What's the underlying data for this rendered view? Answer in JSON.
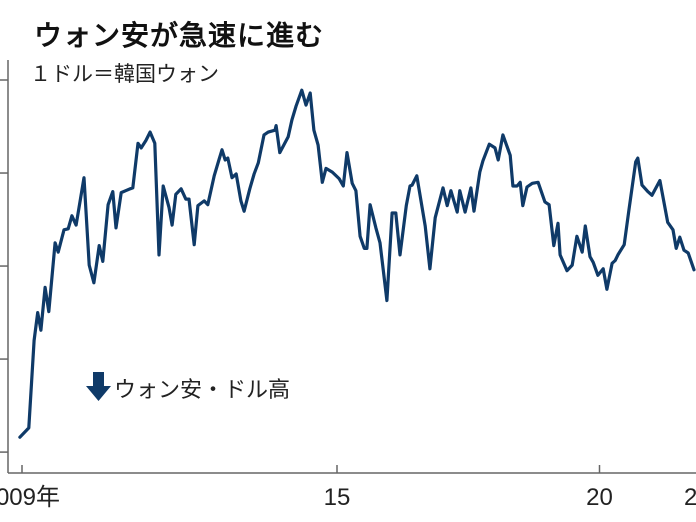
{
  "chart_data": {
    "type": "line",
    "title": "ウォン安が急速に進む",
    "subtitle": "１ドル＝韓国ウォン",
    "annotation": "ウォン安・ドル高",
    "annotation_icon": "down-arrow-icon",
    "y_inverted": true,
    "ylim": [
      950,
      1420
    ],
    "y_ticks": [
      1000,
      1100,
      1200,
      1300,
      1400
    ],
    "x_ticks": [
      {
        "value": 2009,
        "label": "2009年"
      },
      {
        "value": 2015,
        "label": "15"
      },
      {
        "value": 2020,
        "label": "20"
      },
      {
        "value": 2022,
        "label": "2"
      }
    ],
    "grid": false,
    "line_color": "#0f3a68",
    "series": [
      {
        "x": [
          2008.96,
          2009.13,
          2009.23,
          2009.3,
          2009.36,
          2009.44,
          2009.51,
          2009.63,
          2009.69,
          2009.8,
          2009.88,
          2009.95,
          2010.03,
          2010.18,
          2010.28,
          2010.37,
          2010.47,
          2010.54,
          2010.64,
          2010.73,
          2010.79,
          2010.89,
          2011.06,
          2011.11,
          2011.21,
          2011.27,
          2011.36,
          2011.44,
          2011.53,
          2011.61,
          2011.69,
          2011.8,
          2011.86,
          2011.93,
          2012.03,
          2012.12,
          2012.18,
          2012.28,
          2012.35,
          2012.47,
          2012.54,
          2012.66,
          2012.75,
          2012.81,
          2012.87,
          2012.92,
          2013.0,
          2013.08,
          2013.17,
          2013.23,
          2013.34,
          2013.42,
          2013.5,
          2013.61,
          2013.69,
          2013.82,
          2013.84,
          2013.91,
          2014.07,
          2014.14,
          2014.22,
          2014.33,
          2014.41,
          2014.49,
          2014.56,
          2014.64,
          2014.72,
          2014.79,
          2014.91,
          2015.04,
          2015.12,
          2015.19,
          2015.29,
          2015.36,
          2015.44,
          2015.52,
          2015.57,
          2015.63,
          2015.74,
          2015.82,
          2015.95,
          2016.05,
          2016.12,
          2016.2,
          2016.32,
          2016.39,
          2016.43,
          2016.52,
          2016.68,
          2016.77,
          2016.87,
          2017.02,
          2017.1,
          2017.17,
          2017.29,
          2017.34,
          2017.44,
          2017.55,
          2017.61,
          2017.72,
          2017.78,
          2017.9,
          2018.01,
          2018.07,
          2018.16,
          2018.3,
          2018.35,
          2018.43,
          2018.49,
          2018.54,
          2018.62,
          2018.72,
          2018.83,
          2018.96,
          2019.04,
          2019.13,
          2019.21,
          2019.25,
          2019.38,
          2019.48,
          2019.57,
          2019.67,
          2019.73,
          2019.82,
          2019.88,
          2019.97,
          2020.07,
          2020.14,
          2020.24,
          2020.3,
          2020.35,
          2020.47,
          2020.56,
          2020.69,
          2020.73,
          2020.81,
          2020.92,
          2021.0,
          2021.15,
          2021.3,
          2021.4,
          2021.46,
          2021.53,
          2021.61,
          2021.69,
          2021.8
        ],
        "values": [
          1384,
          1374,
          1280,
          1250,
          1269,
          1223,
          1249,
          1175,
          1185,
          1161,
          1160,
          1146,
          1156,
          1105,
          1199,
          1218,
          1178,
          1195,
          1134,
          1120,
          1159,
          1121,
          1117,
          1116,
          1068,
          1073,
          1065,
          1056,
          1068,
          1188,
          1114,
          1137,
          1156,
          1123,
          1117,
          1128,
          1128,
          1177,
          1135,
          1130,
          1134,
          1103,
          1086,
          1075,
          1086,
          1084,
          1105,
          1101,
          1130,
          1141,
          1117,
          1101,
          1089,
          1059,
          1056,
          1054,
          1049,
          1078,
          1061,
          1043,
          1028,
          1011,
          1027,
          1014,
          1054,
          1070,
          1110,
          1095,
          1099,
          1106,
          1114,
          1078,
          1111,
          1119,
          1168,
          1181,
          1181,
          1134,
          1159,
          1175,
          1237,
          1143,
          1143,
          1188,
          1135,
          1114,
          1113,
          1103,
          1157,
          1203,
          1148,
          1116,
          1135,
          1119,
          1142,
          1119,
          1142,
          1116,
          1141,
          1099,
          1087,
          1069,
          1073,
          1086,
          1059,
          1081,
          1114,
          1114,
          1110,
          1135,
          1115,
          1111,
          1110,
          1131,
          1134,
          1178,
          1154,
          1188,
          1205,
          1199,
          1168,
          1185,
          1157,
          1190,
          1196,
          1210,
          1203,
          1225,
          1197,
          1194,
          1188,
          1177,
          1140,
          1088,
          1084,
          1113,
          1120,
          1124,
          1108,
          1153,
          1161,
          1181,
          1169,
          1183,
          1186,
          1204
        ]
      }
    ]
  }
}
